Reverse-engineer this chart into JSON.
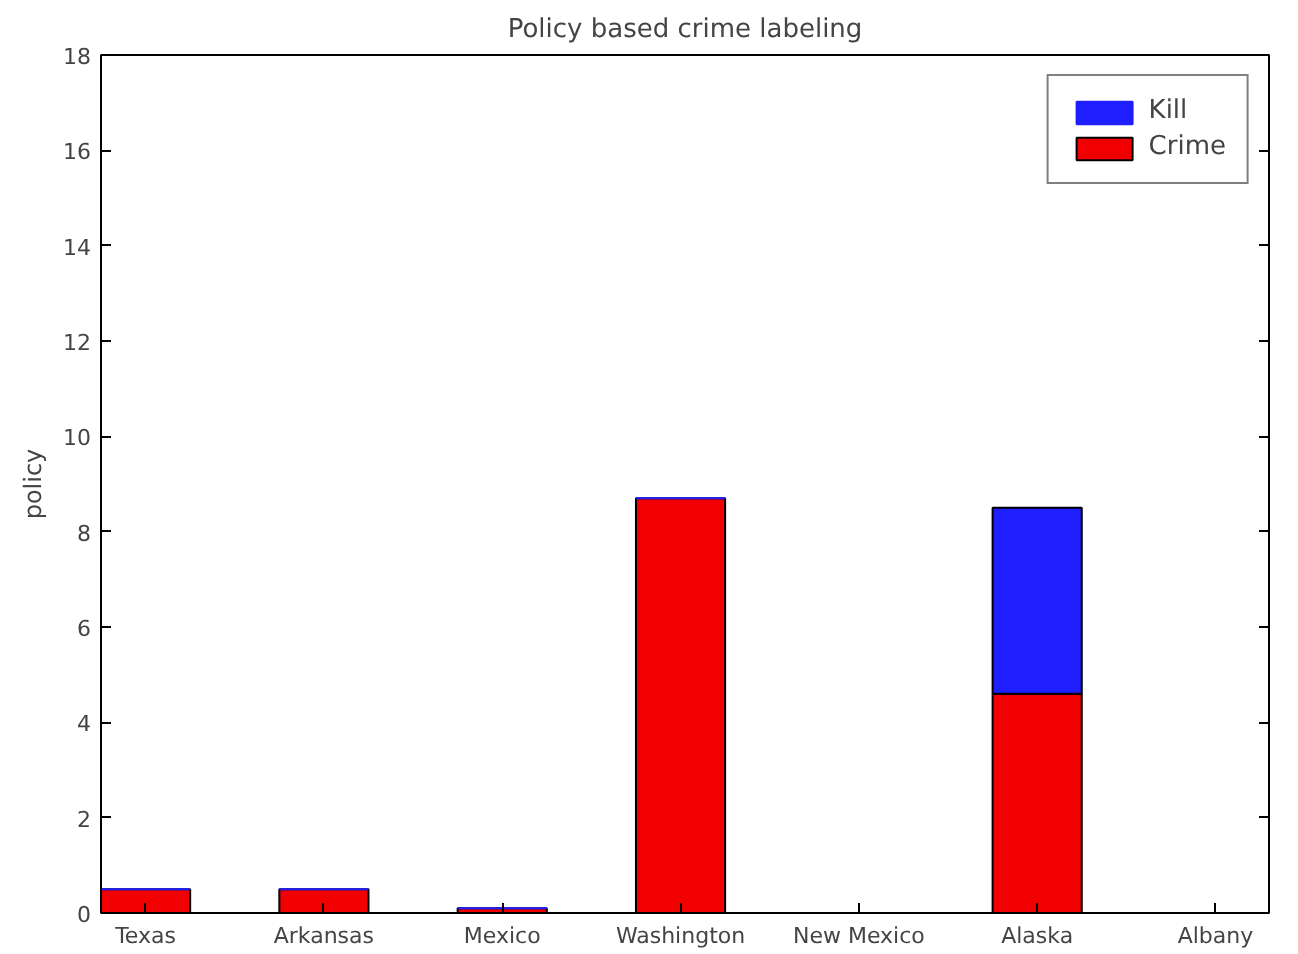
{
  "chart_data": {
    "type": "bar",
    "title": "Policy based crime labeling",
    "ylabel": "policy",
    "categories": [
      "Texas",
      "Arkansas",
      "Mexico",
      "Washington",
      "New Mexico",
      "Alaska",
      "Albany"
    ],
    "stacked": true,
    "series": [
      {
        "name": "Crime",
        "color": "#f00000",
        "values": [
          0.5,
          0.5,
          0.1,
          8.7,
          0,
          4.6,
          0
        ]
      },
      {
        "name": "Kill",
        "color": "#1e1eff",
        "values": [
          0,
          0,
          0,
          0,
          0,
          3.9,
          0
        ]
      }
    ],
    "ylim": [
      0,
      18
    ],
    "yticks": [
      0,
      2,
      4,
      6,
      8,
      10,
      12,
      14,
      16,
      18
    ],
    "grid": false,
    "legend": "top right"
  }
}
